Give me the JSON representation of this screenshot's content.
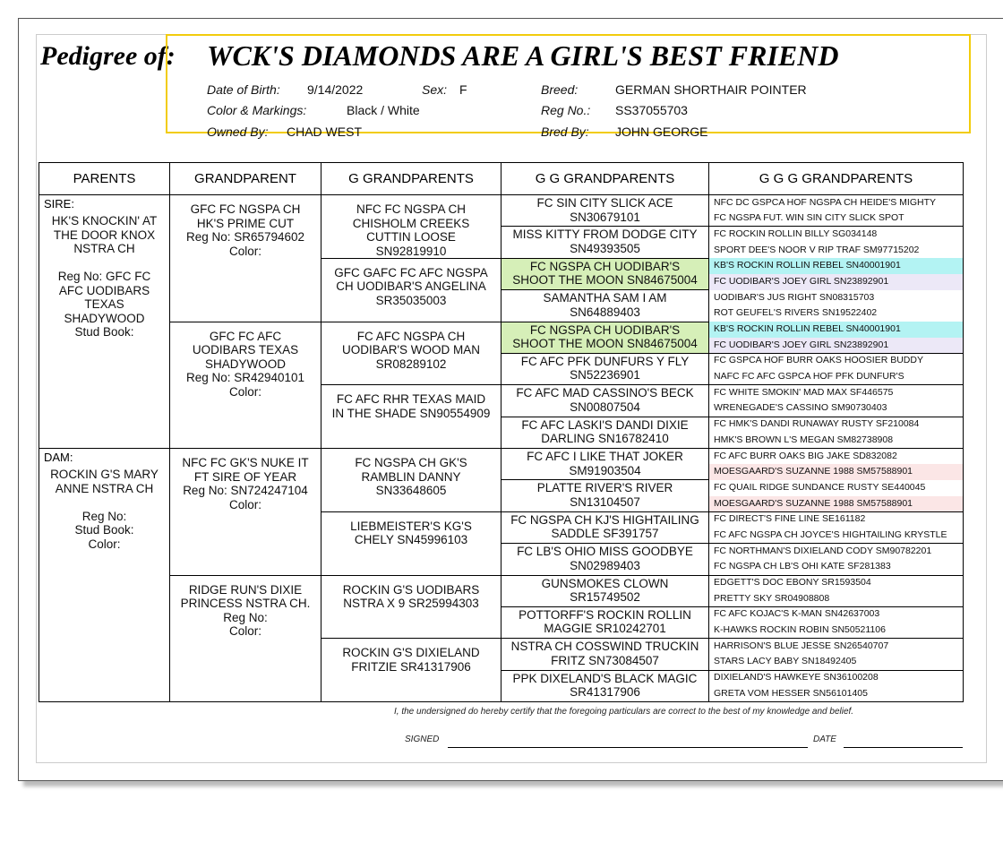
{
  "header": {
    "title": "Pedigree of:",
    "dog_name": "WCK'S DIAMONDS ARE A GIRL'S BEST FRIEND",
    "fields": [
      {
        "label": "Date of Birth:",
        "value": "9/14/2022"
      },
      {
        "label": "Sex:",
        "value": "F"
      },
      {
        "label": "Breed:",
        "value": "GERMAN SHORTHAIR POINTER"
      },
      {
        "label": "Color & Markings:",
        "value": "Black / White"
      },
      {
        "label": "Reg No.:",
        "value": "SS37055703"
      },
      {
        "label": "Owned By:",
        "value": "CHAD WEST"
      },
      {
        "label": "Bred By:",
        "value": "JOHN GEORGE"
      }
    ]
  },
  "table": {
    "columns": [
      "PARENTS",
      "GRANDPARENT",
      "G GRANDPARENTS",
      "G G GRANDPARENTS",
      "G G G GRANDPARENTS"
    ],
    "parents": [
      {
        "role": "SIRE:",
        "lines": [
          "HK'S KNOCKIN' AT",
          "THE DOOR KNOX",
          "NSTRA CH",
          "",
          "Reg No: GFC FC",
          "AFC UODIBARS",
          "TEXAS",
          "SHADYWOOD",
          "Stud Book:"
        ]
      },
      {
        "role": "DAM:",
        "lines": [
          "ROCKIN G'S MARY",
          "ANNE NSTRA CH",
          "",
          "Reg No:",
          "Stud Book:",
          "Color:"
        ]
      }
    ],
    "grandparents": [
      [
        "GFC FC NGSPA CH",
        "HK'S PRIME CUT",
        "Reg No: SR65794602",
        "Color:"
      ],
      [
        "GFC FC AFC",
        "UODIBARS TEXAS",
        "SHADYWOOD",
        "Reg No: SR42940101",
        "Color:"
      ],
      [
        "NFC FC GK'S NUKE IT",
        "FT SIRE OF YEAR",
        "Reg No: SN724247104",
        "Color:"
      ],
      [
        "RIDGE RUN'S DIXIE",
        "PRINCESS NSTRA CH.",
        "Reg No:",
        "Color:"
      ]
    ],
    "g_grandparents": [
      [
        "NFC FC NGSPA CH",
        "CHISHOLM CREEKS",
        "CUTTIN LOOSE",
        "SN92819910"
      ],
      [
        "GFC GAFC FC AFC NGSPA",
        "CH UODIBAR'S ANGELINA",
        "SR35035003"
      ],
      [
        "FC AFC NGSPA CH",
        "UODIBAR'S WOOD MAN",
        "SR08289102"
      ],
      [
        "FC AFC RHR TEXAS MAID",
        "IN THE SHADE SN90554909"
      ],
      [
        "FC NGSPA CH GK'S",
        "RAMBLIN DANNY",
        "SN33648605"
      ],
      [
        "LIEBMEISTER'S KG'S",
        "CHELY SN45996103"
      ],
      [
        "ROCKIN G'S UODIBARS",
        "NSTRA X 9 SR25994303"
      ],
      [
        "ROCKIN G'S DIXIELAND",
        "FRITZIE SR41317906"
      ]
    ],
    "gg_grandparents": [
      {
        "lines": [
          "FC SIN CITY SLICK ACE",
          "SN30679101"
        ]
      },
      {
        "lines": [
          "MISS KITTY FROM DODGE CITY",
          "SN49393505"
        ]
      },
      {
        "lines": [
          "FC NGSPA CH UODIBAR'S",
          "SHOOT THE MOON SN84675004"
        ],
        "color": "#d6efb8"
      },
      {
        "lines": [
          "SAMANTHA SAM I AM",
          "SN64889403"
        ]
      },
      {
        "lines": [
          "FC NGSPA CH UODIBAR'S",
          "SHOOT THE MOON SN84675004"
        ],
        "color": "#d6efb8"
      },
      {
        "lines": [
          "FC AFC PFK DUNFURS Y FLY",
          "SN52236901"
        ]
      },
      {
        "lines": [
          "FC AFC MAD CASSINO'S BECK",
          "SN00807504"
        ]
      },
      {
        "lines": [
          "FC AFC LASKI'S DANDI DIXIE",
          "DARLING SN16782410"
        ]
      },
      {
        "lines": [
          "FC AFC I LIKE THAT JOKER",
          "SM91903504"
        ]
      },
      {
        "lines": [
          "PLATTE RIVER'S RIVER",
          "SN13104507"
        ]
      },
      {
        "lines": [
          "FC NGSPA CH KJ'S HIGHTAILING",
          "SADDLE SF391757"
        ]
      },
      {
        "lines": [
          "FC LB'S OHIO MISS GOODBYE",
          "SN02989403"
        ]
      },
      {
        "lines": [
          "GUNSMOKES CLOWN",
          "SR15749502"
        ]
      },
      {
        "lines": [
          "POTTORFF'S ROCKIN ROLLIN",
          "MAGGIE SR10242701"
        ]
      },
      {
        "lines": [
          "NSTRA CH COSSWIND TRUCKIN",
          "FRITZ SN73084507"
        ]
      },
      {
        "lines": [
          "PPK DIXELAND'S BLACK MAGIC",
          "SR41317906"
        ]
      }
    ],
    "ggg_grandparents": [
      {
        "text": "NFC DC GSPCA HOF NGSPA CH HEIDE'S MIGHTY"
      },
      {
        "text": "FC NGSPA FUT. WIN SIN CITY SLICK SPOT"
      },
      {
        "text": "FC ROCKIN ROLLIN BILLY SG034148"
      },
      {
        "text": "SPORT DEE'S NOOR V RIP TRAF SM97715202"
      },
      {
        "text": "KB'S ROCKIN ROLLIN REBEL SN40001901",
        "color": "#b3f3f3"
      },
      {
        "text": "FC UODIBAR'S JOEY GIRL SN23892901",
        "color": "#ece8f7"
      },
      {
        "text": "UODIBAR'S JUS RIGHT SN08315703"
      },
      {
        "text": "ROT GEUFEL'S RIVERS SN19522402"
      },
      {
        "text": "KB'S ROCKIN ROLLIN REBEL SN40001901",
        "color": "#b3f3f3"
      },
      {
        "text": "FC UODIBAR'S JOEY GIRL SN23892901",
        "color": "#ece8f7"
      },
      {
        "text": "FC GSPCA HOF BURR OAKS HOOSIER BUDDY"
      },
      {
        "text": "NAFC FC AFC GSPCA HOF PFK DUNFUR'S"
      },
      {
        "text": "FC WHITE SMOKIN' MAD MAX SF446575"
      },
      {
        "text": "WRENEGADE'S CASSINO SM90730403"
      },
      {
        "text": "FC HMK'S DANDI RUNAWAY RUSTY SF210084"
      },
      {
        "text": "HMK'S BROWN L'S MEGAN SM82738908"
      },
      {
        "text": "FC AFC BURR OAKS BIG JAKE SD832082"
      },
      {
        "text": "MOESGAARD'S SUZANNE 1988 SM57588901",
        "color": "#fbe6e6"
      },
      {
        "text": "FC QUAIL RIDGE SUNDANCE RUSTY SE440045"
      },
      {
        "text": "MOESGAARD'S SUZANNE 1988 SM57588901",
        "color": "#fbe6e6"
      },
      {
        "text": "FC DIRECT'S FINE LINE SE161182"
      },
      {
        "text": "FC AFC NGSPA CH JOYCE'S HIGHTAILING KRYSTLE"
      },
      {
        "text": "FC NORTHMAN'S DIXIELAND CODY SM90782201"
      },
      {
        "text": "FC NGSPA CH LB'S OHI KATE SF281383"
      },
      {
        "text": "EDGETT'S DOC EBONY SR1593504"
      },
      {
        "text": "PRETTY SKY SR04908808"
      },
      {
        "text": "FC AFC KOJAC'S K-MAN SN42637003"
      },
      {
        "text": "K-HAWKS ROCKIN ROBIN  SN50521106"
      },
      {
        "text": "HARRISON'S BLUE JESSE SN26540707"
      },
      {
        "text": "STARS LACY BABY SN18492405"
      },
      {
        "text": "DIXIELAND'S HAWKEYE SN36100208"
      },
      {
        "text": "GRETA VOM HESSER SN56101405"
      }
    ]
  },
  "footer": {
    "certification": "I, the undersigned do hereby certify that the foregoing particulars are correct to the best of my knowledge and belief.",
    "signed": "SIGNED",
    "date": "DATE"
  }
}
